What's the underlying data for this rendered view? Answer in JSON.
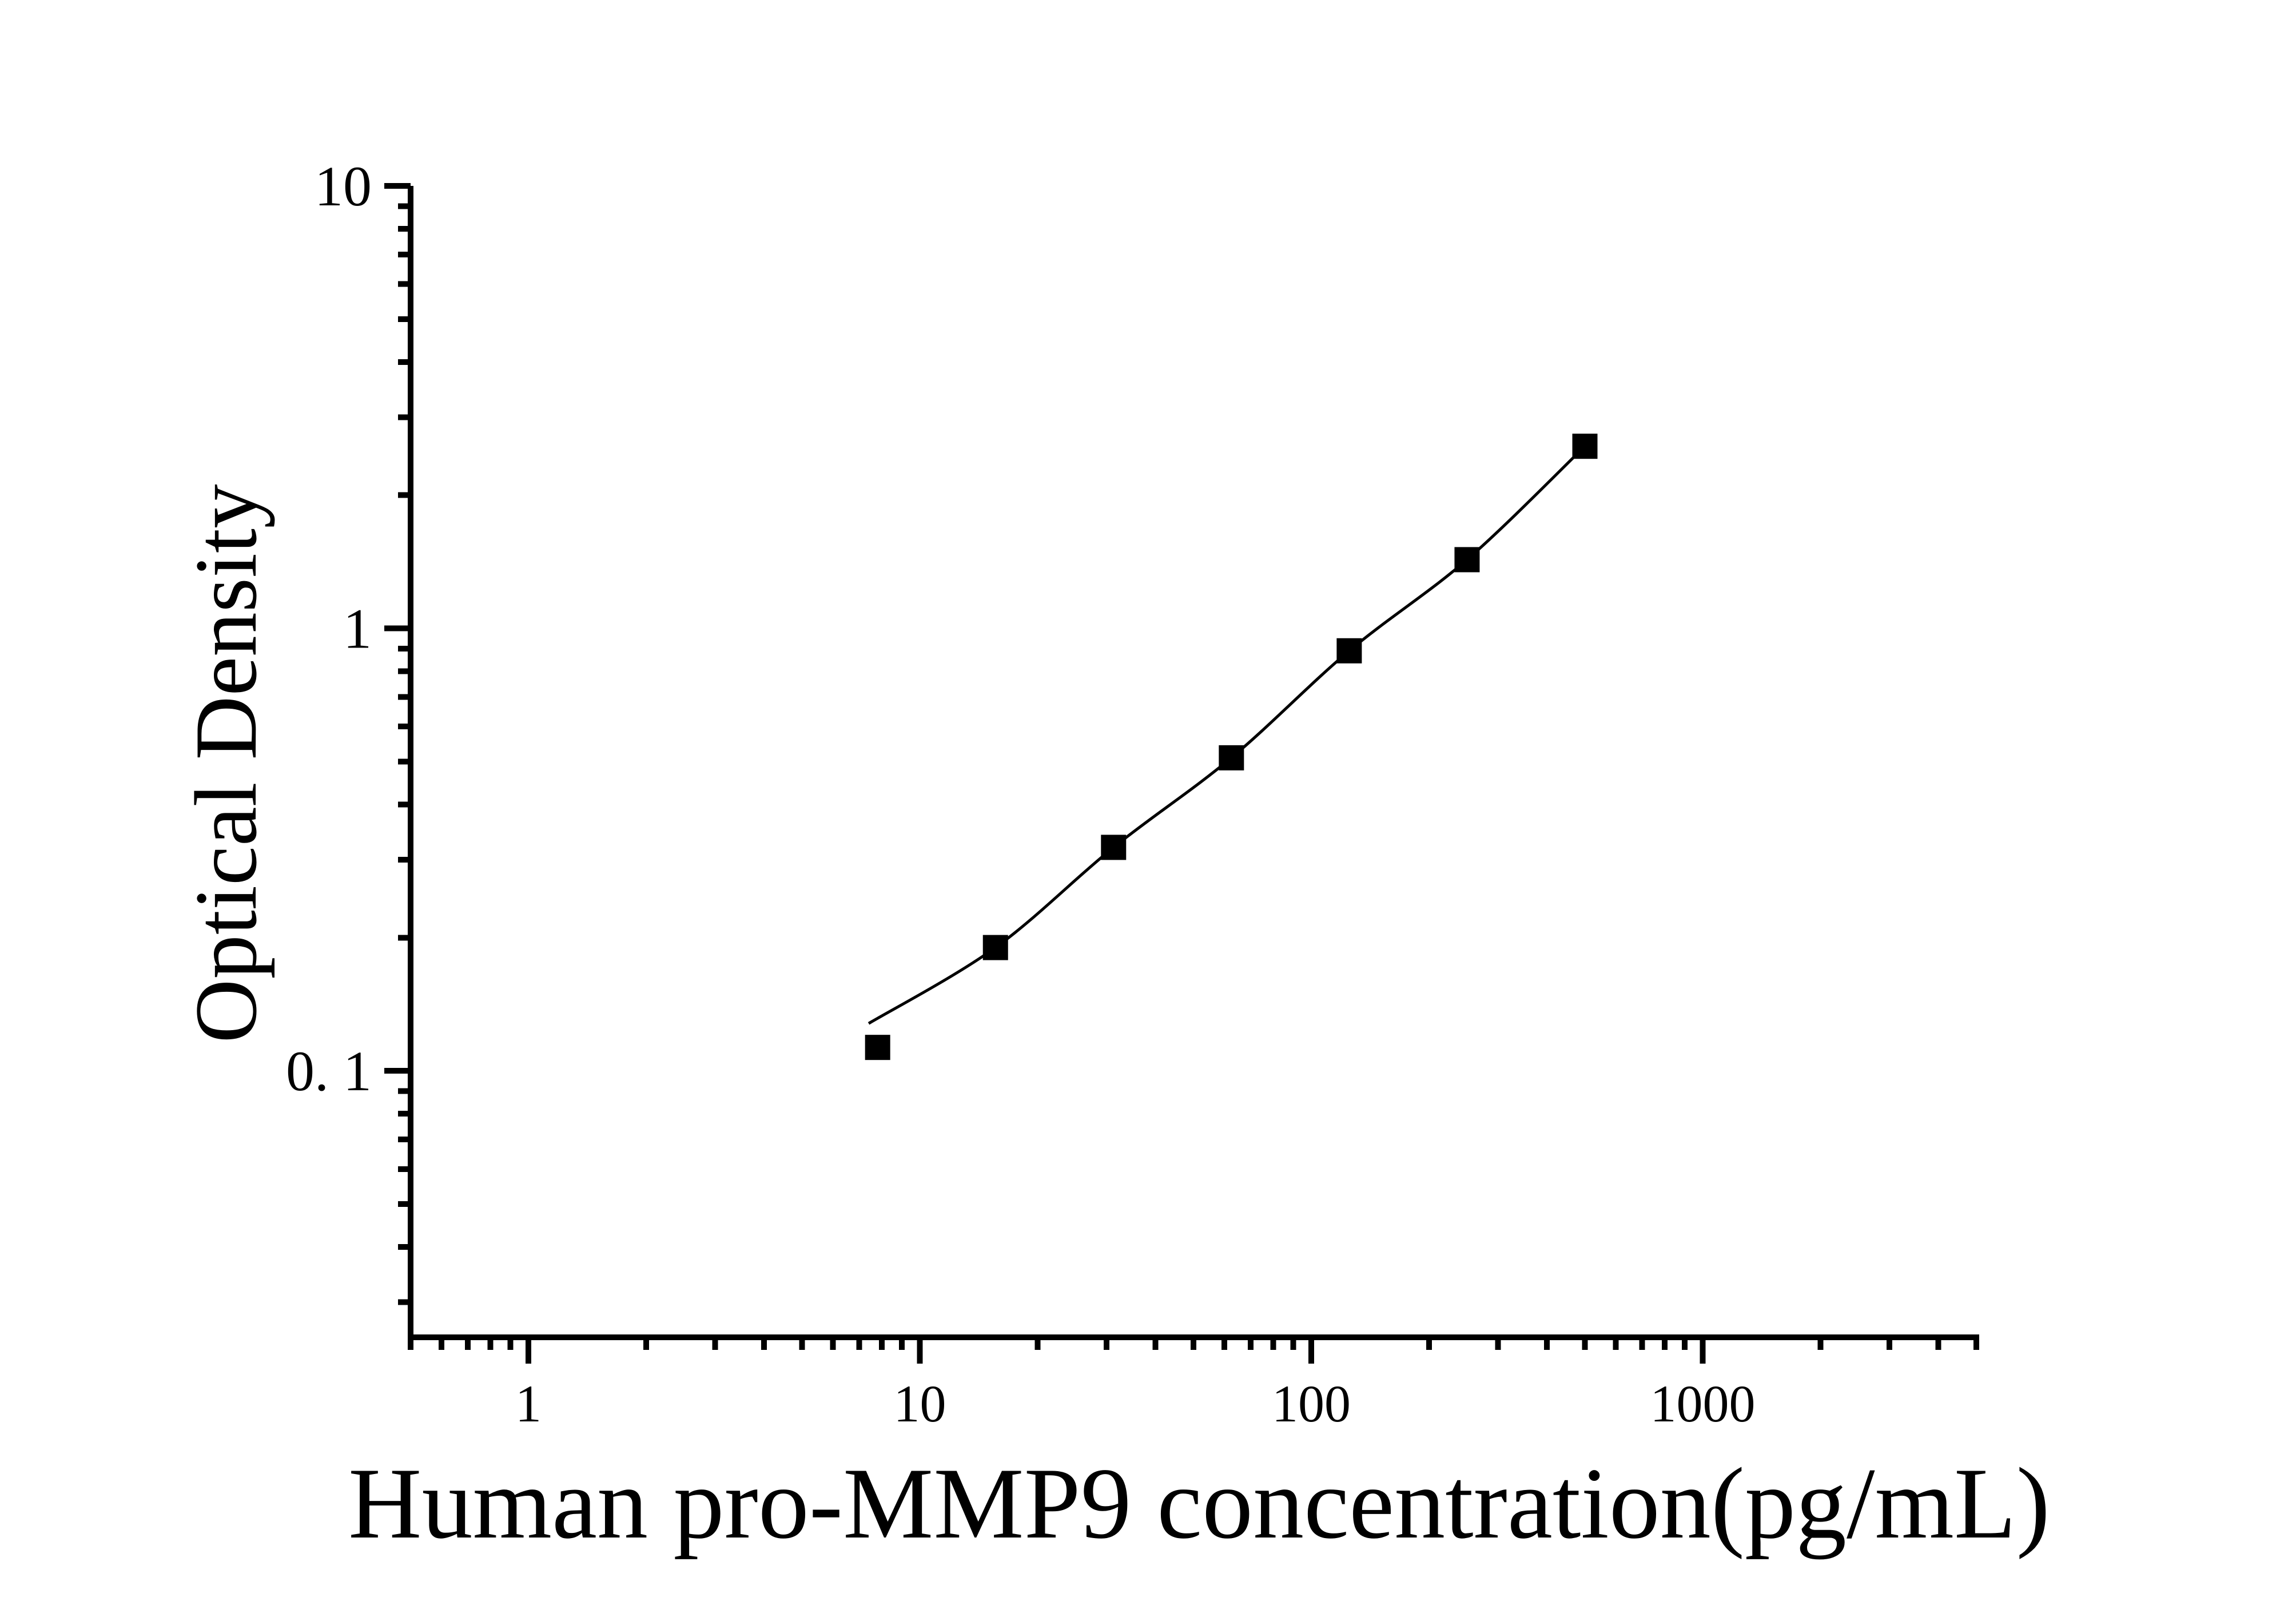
{
  "chart_data": {
    "type": "scatter",
    "title": "",
    "xlabel": "Human pro-MMP9 concentration(pg/mL)",
    "ylabel": "Optical Density",
    "x_scale": "log",
    "y_scale": "log",
    "xlim": [
      0.5,
      5000
    ],
    "ylim": [
      0.025,
      10
    ],
    "x_major_ticks": [
      1,
      10,
      100,
      1000
    ],
    "x_major_labels": [
      "1",
      "10",
      "100",
      "1000"
    ],
    "y_major_ticks": [
      0.1,
      1,
      10
    ],
    "y_major_labels": [
      "0. 1",
      "1",
      "10"
    ],
    "grid": "off",
    "legend": "none",
    "series": [
      {
        "name": "standard-curve-points",
        "marker": "filled-square",
        "color": "#000000",
        "points": [
          [
            7.8,
            0.113
          ],
          [
            15.6,
            0.19
          ],
          [
            31.25,
            0.32
          ],
          [
            62.5,
            0.51
          ],
          [
            125,
            0.89
          ],
          [
            250,
            1.43
          ],
          [
            500,
            2.58
          ]
        ]
      }
    ],
    "fit_curve": {
      "color": "#000000",
      "points": [
        [
          7.4,
          0.128
        ],
        [
          15.6,
          0.19
        ],
        [
          31.25,
          0.32
        ],
        [
          62.5,
          0.51
        ],
        [
          125,
          0.89
        ],
        [
          250,
          1.43
        ],
        [
          500,
          2.58
        ]
      ]
    }
  }
}
